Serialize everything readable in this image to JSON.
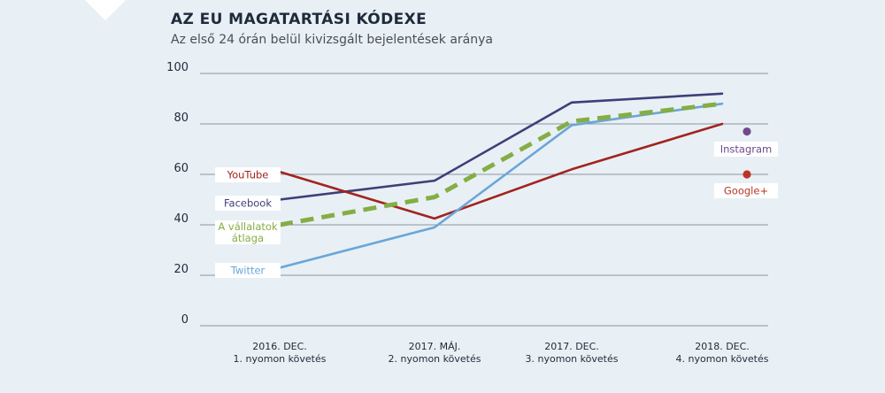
{
  "colors": {
    "background": "#e8f0f5",
    "grid": "#6f7780",
    "text": "#1f2a3a"
  },
  "chart_data": {
    "type": "line",
    "title": "AZ EU MAGATARTÁSI KÓDEXE",
    "subtitle": "Az első 24 órán belül kivizsgált bejelentések aránya",
    "categories": [
      [
        "2016. DEC.",
        "1. nyomon követés"
      ],
      [
        "2017. MÁJ.",
        "2. nyomon követés"
      ],
      [
        "2017. DEC.",
        "3. nyomon követés"
      ],
      [
        "2018. DEC.",
        "4. nyomon követés"
      ]
    ],
    "ylim": [
      0,
      100
    ],
    "yticks": [
      0,
      20,
      40,
      60,
      80,
      100
    ],
    "grid": true,
    "series": [
      {
        "key": "facebook",
        "name": "Facebook",
        "label_lines": [
          "Facebook"
        ],
        "color": "#3f3f78",
        "dashed": false,
        "values": [
          50,
          57.5,
          88.5,
          92
        ]
      },
      {
        "key": "youtube",
        "name": "YouTube",
        "label_lines": [
          "YouTube"
        ],
        "color": "#a2241e",
        "dashed": false,
        "values": [
          61,
          42.5,
          62,
          80
        ]
      },
      {
        "key": "twitter",
        "name": "Twitter",
        "label_lines": [
          "Twitter"
        ],
        "color": "#6aa6d8",
        "dashed": false,
        "values": [
          23,
          39,
          79.5,
          88
        ]
      },
      {
        "key": "average",
        "name": "A vállalatok átlaga",
        "label_lines": [
          "A vállalatok",
          "átlaga"
        ],
        "color": "#85ad45",
        "dashed": true,
        "values": [
          40,
          51,
          81,
          88
        ]
      }
    ],
    "points": [
      {
        "key": "instagram",
        "name": "Instagram",
        "color": "#704a8b",
        "category_index": 3,
        "value": 77
      },
      {
        "key": "googleplus",
        "name": "Google+",
        "color": "#bb3526",
        "category_index": 3,
        "value": 60
      }
    ]
  }
}
